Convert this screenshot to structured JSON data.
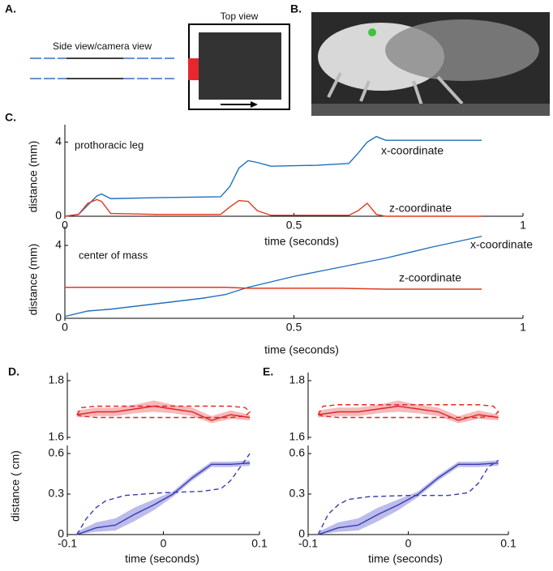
{
  "panel_labels": {
    "A": "A.",
    "B": "B.",
    "C": "C.",
    "D": "D.",
    "E": "E."
  },
  "diagram": {
    "side_view": "Side view/camera view",
    "top_view": "Top view"
  },
  "chart_data": [
    {
      "type": "line",
      "annotation": "prothoracic leg",
      "ylabel": "distance (mm)",
      "xlabel": "time (seconds)",
      "xlim": [
        0,
        1
      ],
      "xticks": [
        0,
        0.5,
        1
      ],
      "ylim": [
        0,
        4.5
      ],
      "yticks": [
        0,
        4
      ],
      "series": [
        {
          "name": "x-coordinate",
          "color": "#1f6fbf",
          "style": "solid",
          "x": [
            0,
            0.03,
            0.05,
            0.07,
            0.08,
            0.1,
            0.2,
            0.34,
            0.36,
            0.38,
            0.4,
            0.42,
            0.45,
            0.55,
            0.62,
            0.64,
            0.66,
            0.68,
            0.7,
            0.8,
            0.91
          ],
          "values": [
            0,
            0.1,
            0.6,
            1.1,
            1.2,
            0.95,
            1.0,
            1.05,
            1.6,
            2.6,
            3.0,
            2.9,
            2.7,
            2.75,
            2.85,
            3.4,
            4.0,
            4.3,
            4.1,
            4.1,
            4.1
          ]
        },
        {
          "name": "z-coordinate",
          "color": "#e03a1e",
          "style": "solid",
          "x": [
            0,
            0.03,
            0.05,
            0.07,
            0.08,
            0.1,
            0.2,
            0.34,
            0.36,
            0.38,
            0.4,
            0.42,
            0.45,
            0.55,
            0.62,
            0.64,
            0.66,
            0.68,
            0.7,
            0.8,
            0.91
          ],
          "values": [
            0,
            0.1,
            0.7,
            0.9,
            0.8,
            0.15,
            0.1,
            0.1,
            0.5,
            0.85,
            0.8,
            0.3,
            0.05,
            0.05,
            0.05,
            0.3,
            0.7,
            0.1,
            0,
            0,
            0
          ]
        }
      ]
    },
    {
      "type": "line",
      "annotation": "center of mass",
      "ylabel": "distance (mm)",
      "xlabel": "time (seconds)",
      "xlim": [
        0,
        1
      ],
      "xticks": [
        0,
        0.5,
        1
      ],
      "ylim": [
        0,
        4.6
      ],
      "yticks": [
        0,
        4
      ],
      "series": [
        {
          "name": "x-coordinate",
          "color": "#1f6fbf",
          "style": "solid",
          "x": [
            0,
            0.05,
            0.1,
            0.2,
            0.3,
            0.35,
            0.4,
            0.5,
            0.6,
            0.7,
            0.8,
            0.91
          ],
          "values": [
            0.1,
            0.4,
            0.5,
            0.8,
            1.1,
            1.3,
            1.7,
            2.3,
            2.8,
            3.3,
            3.9,
            4.5
          ]
        },
        {
          "name": "z-coordinate",
          "color": "#e03a1e",
          "style": "solid",
          "x": [
            0,
            0.05,
            0.1,
            0.2,
            0.3,
            0.35,
            0.4,
            0.5,
            0.6,
            0.7,
            0.8,
            0.91
          ],
          "values": [
            1.7,
            1.7,
            1.7,
            1.7,
            1.7,
            1.7,
            1.65,
            1.65,
            1.65,
            1.6,
            1.6,
            1.6
          ]
        }
      ]
    },
    {
      "type": "line",
      "xlim": [
        -0.1,
        0.1
      ],
      "ylim": [
        1.6,
        1.8
      ],
      "yticks": [
        1.6,
        1.8
      ],
      "series": [
        {
          "color": "#e0262a",
          "style": "solid",
          "band_color": "#f6b9b9",
          "x": [
            -0.09,
            -0.07,
            -0.05,
            -0.03,
            -0.01,
            0.01,
            0.03,
            0.05,
            0.07,
            0.09
          ],
          "values": [
            1.68,
            1.69,
            1.69,
            1.7,
            1.71,
            1.7,
            1.69,
            1.66,
            1.68,
            1.67
          ],
          "lower": [
            1.67,
            1.675,
            1.675,
            1.685,
            1.69,
            1.685,
            1.675,
            1.65,
            1.665,
            1.66
          ],
          "upper": [
            1.695,
            1.705,
            1.705,
            1.715,
            1.73,
            1.715,
            1.705,
            1.675,
            1.695,
            1.68
          ]
        },
        {
          "color": "#e0262a",
          "style": "dashed",
          "x": [
            -0.09,
            -0.085,
            -0.07,
            0,
            0.07,
            0.085,
            0.09,
            0.085,
            0.07,
            0,
            -0.07,
            -0.085,
            -0.09
          ],
          "values": [
            1.68,
            1.705,
            1.71,
            1.71,
            1.71,
            1.705,
            1.69,
            1.675,
            1.67,
            1.67,
            1.67,
            1.675,
            1.68
          ]
        }
      ]
    },
    {
      "type": "line",
      "ylabel": "distance ( cm)",
      "xlabel": "time (seconds)",
      "xlim": [
        -0.1,
        0.1
      ],
      "xticks": [
        -0.1,
        0,
        0.1
      ],
      "ylim": [
        0,
        0.6
      ],
      "yticks": [
        0,
        0.3,
        0.6
      ],
      "series": [
        {
          "color": "#3a3ab0",
          "style": "solid",
          "band_color": "#bcbcec",
          "x": [
            -0.09,
            -0.07,
            -0.05,
            -0.03,
            -0.01,
            0.01,
            0.03,
            0.05,
            0.07,
            0.09
          ],
          "values": [
            0,
            0.05,
            0.07,
            0.15,
            0.22,
            0.3,
            0.42,
            0.52,
            0.52,
            0.53
          ],
          "lower": [
            0,
            0.02,
            0.03,
            0.1,
            0.18,
            0.28,
            0.4,
            0.5,
            0.5,
            0.51
          ],
          "upper": [
            0.02,
            0.09,
            0.12,
            0.2,
            0.26,
            0.32,
            0.44,
            0.54,
            0.54,
            0.55
          ]
        },
        {
          "color": "#3a3ab0",
          "style": "dashed",
          "x": [
            -0.09,
            -0.08,
            -0.07,
            -0.06,
            -0.04,
            0,
            0.04,
            0.06,
            0.07,
            0.08,
            0.09
          ],
          "values": [
            0,
            0.12,
            0.2,
            0.25,
            0.29,
            0.31,
            0.32,
            0.34,
            0.4,
            0.5,
            0.6
          ]
        }
      ]
    },
    {
      "type": "line",
      "xlim": [
        -0.1,
        0.1
      ],
      "ylim": [
        1.6,
        1.8
      ],
      "yticks": [
        1.6,
        1.8
      ],
      "series": [
        {
          "color": "#e0262a",
          "style": "solid",
          "band_color": "#f6b9b9",
          "x": [
            -0.09,
            -0.07,
            -0.05,
            -0.03,
            -0.01,
            0.01,
            0.03,
            0.05,
            0.07,
            0.09
          ],
          "values": [
            1.68,
            1.69,
            1.69,
            1.7,
            1.71,
            1.7,
            1.69,
            1.66,
            1.68,
            1.67
          ],
          "lower": [
            1.67,
            1.675,
            1.675,
            1.685,
            1.69,
            1.685,
            1.675,
            1.65,
            1.665,
            1.66
          ],
          "upper": [
            1.695,
            1.705,
            1.705,
            1.715,
            1.73,
            1.715,
            1.705,
            1.675,
            1.695,
            1.68
          ]
        },
        {
          "color": "#e0262a",
          "style": "dashed",
          "x": [
            -0.09,
            -0.085,
            -0.07,
            0,
            0.07,
            0.085,
            0.09,
            0.085,
            0.07,
            0,
            -0.07,
            -0.085,
            -0.09
          ],
          "values": [
            1.68,
            1.71,
            1.715,
            1.715,
            1.715,
            1.71,
            1.69,
            1.675,
            1.67,
            1.67,
            1.67,
            1.675,
            1.68
          ]
        }
      ]
    },
    {
      "type": "line",
      "xlabel": "time (seconds)",
      "xlim": [
        -0.1,
        0.1
      ],
      "xticks": [
        -0.1,
        0,
        0.1
      ],
      "ylim": [
        0,
        0.6
      ],
      "yticks": [
        0,
        0.3,
        0.6
      ],
      "series": [
        {
          "color": "#3a3ab0",
          "style": "solid",
          "band_color": "#bcbcec",
          "x": [
            -0.09,
            -0.07,
            -0.05,
            -0.03,
            -0.01,
            0.01,
            0.03,
            0.05,
            0.07,
            0.09
          ],
          "values": [
            0,
            0.05,
            0.07,
            0.15,
            0.22,
            0.3,
            0.42,
            0.52,
            0.52,
            0.53
          ],
          "lower": [
            0,
            0.02,
            0.03,
            0.1,
            0.18,
            0.28,
            0.4,
            0.5,
            0.5,
            0.51
          ],
          "upper": [
            0.02,
            0.09,
            0.12,
            0.2,
            0.26,
            0.32,
            0.44,
            0.54,
            0.54,
            0.55
          ]
        },
        {
          "color": "#3a3ab0",
          "style": "dashed",
          "x": [
            -0.09,
            -0.08,
            -0.07,
            -0.06,
            -0.04,
            0,
            0.04,
            0.06,
            0.07,
            0.08,
            0.09
          ],
          "values": [
            0,
            0.15,
            0.22,
            0.26,
            0.28,
            0.29,
            0.29,
            0.31,
            0.38,
            0.5,
            0.55
          ]
        }
      ]
    }
  ]
}
